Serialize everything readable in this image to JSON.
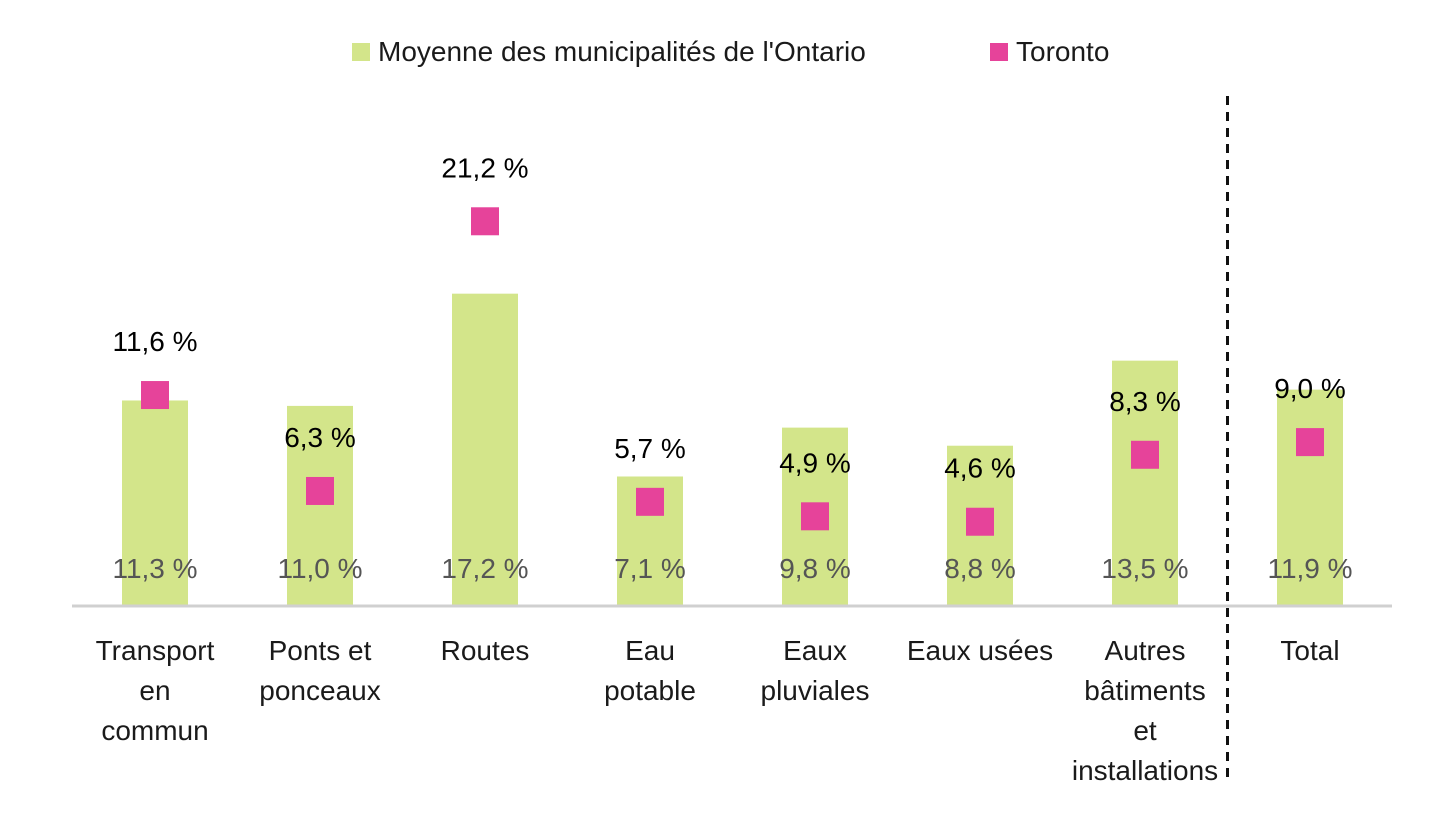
{
  "chart_data": {
    "type": "bar",
    "categories": [
      "Transport en commun",
      "Ponts et ponceaux",
      "Routes",
      "Eau potable",
      "Eaux pluviales",
      "Eaux usées",
      "Autres bâtiments et installations",
      "Total"
    ],
    "category_lines": [
      [
        "Transport",
        "en",
        "commun"
      ],
      [
        "Ponts et",
        "ponceaux"
      ],
      [
        "Routes"
      ],
      [
        "Eau",
        "potable"
      ],
      [
        "Eaux",
        "pluviales"
      ],
      [
        "Eaux usées"
      ],
      [
        "Autres",
        "bâtiments",
        "et",
        "installations"
      ],
      [
        "Total"
      ]
    ],
    "series": [
      {
        "name": "Moyenne des municipalités de l'Ontario",
        "kind": "bar",
        "color": "#d3e58a",
        "values": [
          11.3,
          11.0,
          17.2,
          7.1,
          9.8,
          8.8,
          13.5,
          11.9
        ],
        "labels": [
          "11,3 %",
          "11,0 %",
          "17,2 %",
          "7,1 %",
          "9,8 %",
          "8,8 %",
          "13,5 %",
          "11,9 %"
        ]
      },
      {
        "name": "Toronto",
        "kind": "marker",
        "color": "#e6439a",
        "values": [
          11.6,
          6.3,
          21.2,
          5.7,
          4.9,
          4.6,
          8.3,
          9.0
        ],
        "labels": [
          "11,6 %",
          "6,3 %",
          "21,2 %",
          "5,7 %",
          "4,9 %",
          "4,6 %",
          "8,3 %",
          "9,0 %"
        ]
      }
    ],
    "ylim": [
      0,
      26
    ],
    "grid": false,
    "legend_position": "top-center",
    "separator_before_category": "Total",
    "title": "",
    "xlabel": "",
    "ylabel": ""
  }
}
